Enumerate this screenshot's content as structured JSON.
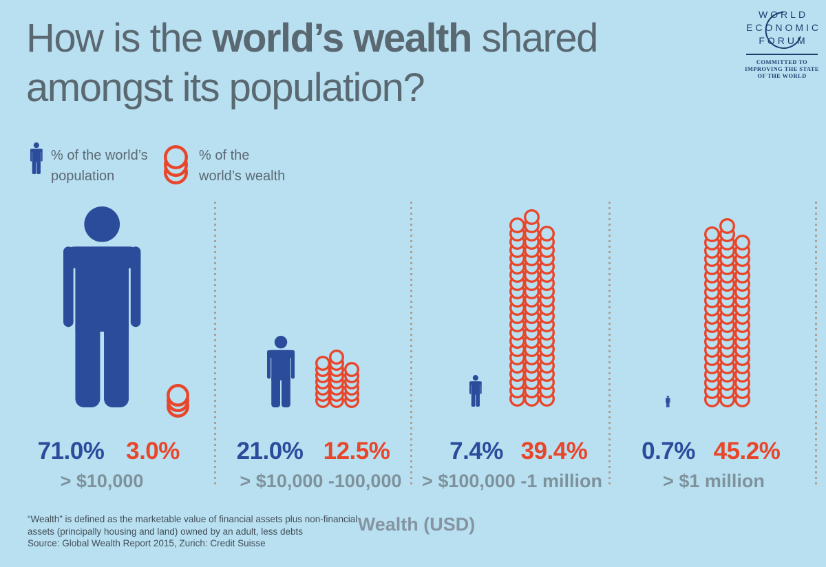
{
  "title": {
    "part1": "How is the ",
    "part2_bold": "world’s wealth",
    "part3": " shared",
    "line2": "amongst its population?"
  },
  "logo": {
    "name_line1": "WORLD",
    "name_line2": "ECONOMIC",
    "name_line3": "FORUM",
    "tagline_line1": "COMMITTED TO",
    "tagline_line2": "IMPROVING THE STATE",
    "tagline_line3": "OF THE WORLD"
  },
  "legend": {
    "population": {
      "line1": "% of the world’s",
      "line2": "population"
    },
    "wealth": {
      "line1": "% of the",
      "line2": "world’s wealth"
    }
  },
  "chart_data": {
    "type": "pictogram",
    "categories": [
      "> $10,000",
      "> $10,000 -100,000",
      "> $100,000 -1 million",
      "> $1 million"
    ],
    "series": [
      {
        "name": "% of the world’s population",
        "color": "#2b4c9b",
        "values": [
          71.0,
          21.0,
          7.4,
          0.7
        ]
      },
      {
        "name": "% of the world’s wealth",
        "color": "#e8462b",
        "values": [
          3.0,
          12.5,
          39.4,
          45.2
        ]
      }
    ],
    "xlabel": "Wealth (USD)",
    "legend_position": "top-left",
    "groups": [
      {
        "label": "> $10,000",
        "population_pct": "71.0%",
        "wealth_pct": "3.0%"
      },
      {
        "label": "> $10,000 -100,000",
        "population_pct": "21.0%",
        "wealth_pct": "12.5%"
      },
      {
        "label": "> $100,000 -1 million",
        "population_pct": "7.4%",
        "wealth_pct": "39.4%"
      },
      {
        "label": "> $1 million",
        "population_pct": "0.7%",
        "wealth_pct": "45.2%"
      }
    ]
  },
  "footer": {
    "note_line1": "“Wealth” is defined as the marketable value of financial assets plus non-financial",
    "note_line2": "assets (principally housing and land) owned by an adult, less debts",
    "source_line": "Source: Global Wealth Report 2015, Zurich: Credit Suisse",
    "axis_label": "Wealth (USD)"
  },
  "colors": {
    "background": "#b9e0f1",
    "population_blue": "#2b4c9b",
    "wealth_red": "#e8462b",
    "title_gray": "#5a6872",
    "label_gray": "#7e929c",
    "footer_gray": "#414e57",
    "logo_navy": "#1d3c6e",
    "separator_dot": "#a9a096"
  }
}
